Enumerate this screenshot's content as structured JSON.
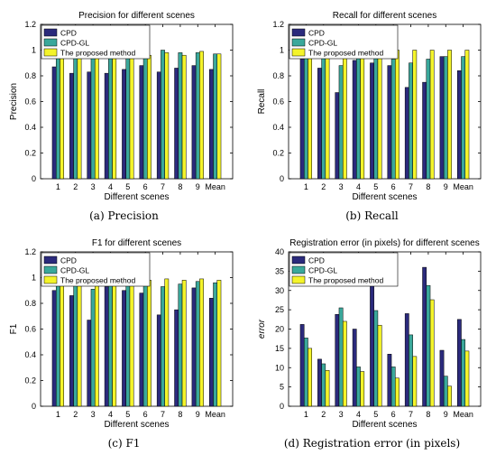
{
  "colors": {
    "CPD": "#2b2a7c",
    "CPD-GL": "#3aa89b",
    "The proposed method": "#f4f42a"
  },
  "chart_data": [
    {
      "type": "bar",
      "title": "Precision for different scenes",
      "xlabel": "Different scenes",
      "ylabel": "Precision",
      "ylim": [
        0,
        1.2
      ],
      "yticks": [
        "0",
        "0.2",
        "0.4",
        "0.6",
        "0.8",
        "1",
        "1.2"
      ],
      "categories": [
        "1",
        "2",
        "3",
        "4",
        "5",
        "6",
        "7",
        "8",
        "9",
        "Mean"
      ],
      "legend_position": "top-left",
      "caption": "(a)  Precision",
      "series": [
        {
          "name": "CPD",
          "values": [
            0.87,
            0.82,
            0.83,
            0.82,
            0.85,
            0.88,
            0.83,
            0.86,
            0.88,
            0.85
          ]
        },
        {
          "name": "CPD-GL",
          "values": [
            0.98,
            0.98,
            0.94,
            0.95,
            0.94,
            0.95,
            1.0,
            0.98,
            0.98,
            0.97
          ]
        },
        {
          "name": "The proposed method",
          "values": [
            0.98,
            0.99,
            0.95,
            0.97,
            0.96,
            0.96,
            0.98,
            0.96,
            0.99,
            0.97
          ]
        }
      ]
    },
    {
      "type": "bar",
      "title": "Recall for different scenes",
      "xlabel": "Different scenes",
      "ylabel": "Recall",
      "ylim": [
        0,
        1.2
      ],
      "yticks": [
        "0",
        "0.2",
        "0.4",
        "0.6",
        "0.8",
        "1",
        "1.2"
      ],
      "categories": [
        "1",
        "2",
        "3",
        "4",
        "5",
        "6",
        "7",
        "8",
        "9",
        "Mean"
      ],
      "legend_position": "top-left",
      "caption": "(b)  Recall",
      "series": [
        {
          "name": "CPD",
          "values": [
            0.93,
            0.86,
            0.67,
            0.92,
            0.9,
            0.88,
            0.71,
            0.75,
            0.95,
            0.84
          ]
        },
        {
          "name": "CPD-GL",
          "values": [
            0.96,
            1.0,
            0.88,
            1.0,
            0.96,
            0.93,
            0.9,
            0.93,
            0.95,
            0.95
          ]
        },
        {
          "name": "The proposed method",
          "values": [
            1.0,
            1.0,
            1.0,
            1.0,
            1.0,
            1.0,
            1.0,
            1.0,
            1.0,
            1.0
          ]
        }
      ]
    },
    {
      "type": "bar",
      "title": "F1 for different scenes",
      "xlabel": "Different scenes",
      "ylabel": "F1",
      "ylim": [
        0,
        1.2
      ],
      "yticks": [
        "0",
        "0.2",
        "0.4",
        "0.6",
        "0.8",
        "1",
        "1.2"
      ],
      "categories": [
        "1",
        "2",
        "3",
        "4",
        "5",
        "6",
        "7",
        "8",
        "9",
        "Mean"
      ],
      "legend_position": "top-left",
      "caption": "(c)  F1",
      "series": [
        {
          "name": "CPD",
          "values": [
            0.9,
            0.86,
            0.67,
            0.93,
            0.9,
            0.88,
            0.71,
            0.75,
            0.92,
            0.84
          ]
        },
        {
          "name": "CPD-GL",
          "values": [
            0.97,
            0.99,
            0.91,
            0.98,
            0.95,
            0.94,
            0.93,
            0.95,
            0.97,
            0.96
          ]
        },
        {
          "name": "The proposed method",
          "values": [
            0.99,
            0.99,
            0.97,
            0.99,
            0.98,
            0.98,
            0.99,
            0.98,
            0.99,
            0.98
          ]
        }
      ]
    },
    {
      "type": "bar",
      "title": "Registration error (in pixels) for different scenes",
      "xlabel": "Different scenes",
      "ylabel": "error",
      "ylim": [
        0,
        40
      ],
      "yticks": [
        "0",
        "5",
        "10",
        "15",
        "20",
        "25",
        "30",
        "35",
        "40"
      ],
      "categories": [
        "1",
        "2",
        "3",
        "4",
        "5",
        "6",
        "7",
        "8",
        "9",
        "Mean"
      ],
      "legend_position": "top-left",
      "caption": "(d)  Registration error (in pixels)",
      "series": [
        {
          "name": "CPD",
          "values": [
            21.2,
            12.2,
            23.8,
            20.0,
            32.5,
            13.5,
            24.0,
            36.0,
            14.5,
            22.5
          ]
        },
        {
          "name": "CPD-GL",
          "values": [
            17.7,
            11.0,
            25.5,
            10.2,
            24.8,
            10.2,
            18.5,
            31.3,
            7.8,
            17.3
          ]
        },
        {
          "name": "The proposed method",
          "values": [
            15.0,
            9.3,
            22.0,
            9.0,
            21.0,
            7.3,
            12.9,
            27.6,
            5.2,
            14.3
          ]
        }
      ]
    }
  ]
}
